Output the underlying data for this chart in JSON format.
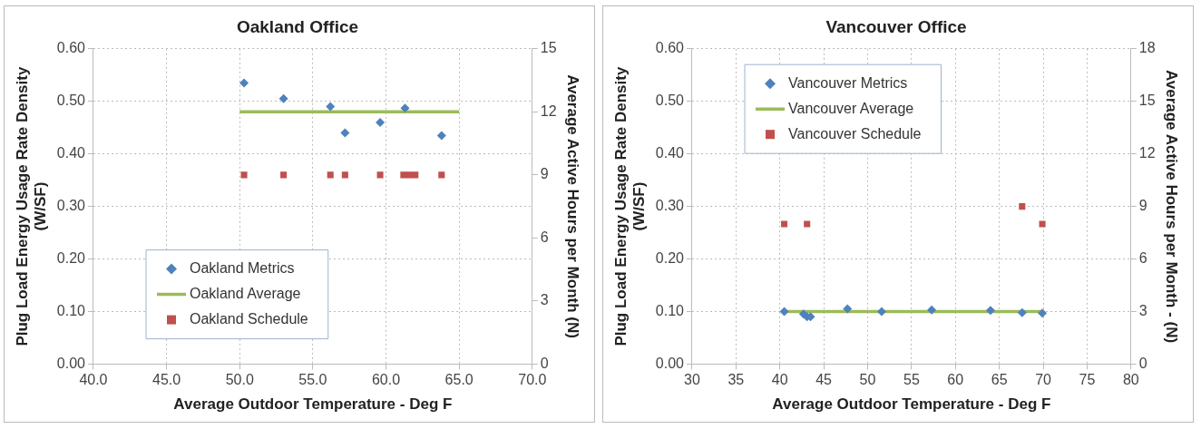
{
  "chart_data": [
    {
      "type": "scatter",
      "title": "Oakland Office",
      "xlabel": "Average Outdoor Temperature - Deg F",
      "ylabel": "Plug Load Energy Usage Rate Density\n(W/SF)",
      "y2label": "Average Active Hours per Month (N)",
      "xlim": [
        40,
        70
      ],
      "xticks": [
        {
          "value": 40,
          "label": "40.0"
        },
        {
          "value": 45,
          "label": "45.0"
        },
        {
          "value": 50,
          "label": "50.0"
        },
        {
          "value": 55,
          "label": "55.0"
        },
        {
          "value": 60,
          "label": "60.0"
        },
        {
          "value": 65,
          "label": "65.0"
        },
        {
          "value": 70,
          "label": "70.0"
        }
      ],
      "ylim": [
        0,
        0.6
      ],
      "yticks": [
        {
          "value": 0,
          "label": "0.00"
        },
        {
          "value": 0.1,
          "label": "0.10"
        },
        {
          "value": 0.2,
          "label": "0.20"
        },
        {
          "value": 0.3,
          "label": "0.30"
        },
        {
          "value": 0.4,
          "label": "0.40"
        },
        {
          "value": 0.5,
          "label": "0.50"
        },
        {
          "value": 0.6,
          "label": "0.60"
        }
      ],
      "y2lim": [
        0,
        15
      ],
      "y2ticks": [
        0,
        3,
        6,
        9,
        12,
        15
      ],
      "grid": true,
      "legend": "bottom left",
      "series": [
        {
          "name": "Oakland Metrics",
          "marker": "diamond",
          "color": "#4f81bd",
          "x": [
            50.3,
            53.0,
            56.2,
            57.2,
            59.6,
            61.3,
            63.8
          ],
          "values": [
            0.535,
            0.505,
            0.49,
            0.44,
            0.46,
            0.487,
            0.435
          ]
        },
        {
          "name": "Oakland Average",
          "type": "line",
          "marker": "none",
          "color": "#9bbb59",
          "x": [
            50.0,
            65.0
          ],
          "values": [
            0.48,
            0.48
          ]
        },
        {
          "name": "Oakland Schedule",
          "marker": "square",
          "axis": "y2",
          "color": "#c0504d",
          "x": [
            50.3,
            53.0,
            56.2,
            57.2,
            59.6,
            61.2,
            61.6,
            62.0,
            63.8
          ],
          "values": [
            9,
            9,
            9,
            9,
            9,
            9,
            9,
            9,
            9
          ]
        }
      ]
    },
    {
      "type": "scatter",
      "title": "Vancouver Office",
      "xlabel": "Average Outdoor Temperature - Deg F",
      "ylabel": "Plug Load Energy Usage Rate Density\n(W/SF)",
      "y2label": "Average Active Hours per Month - (N)",
      "xlim": [
        30,
        80
      ],
      "xticks": [
        30,
        35,
        40,
        45,
        50,
        55,
        60,
        65,
        70,
        75,
        80
      ],
      "ylim": [
        0,
        0.6
      ],
      "yticks": [
        {
          "value": 0,
          "label": "0.00"
        },
        {
          "value": 0.1,
          "label": "0.10"
        },
        {
          "value": 0.2,
          "label": "0.20"
        },
        {
          "value": 0.3,
          "label": "0.30"
        },
        {
          "value": 0.4,
          "label": "0.40"
        },
        {
          "value": 0.5,
          "label": "0.50"
        },
        {
          "value": 0.6,
          "label": "0.60"
        }
      ],
      "y2lim": [
        0,
        18
      ],
      "y2ticks": [
        0,
        3,
        6,
        9,
        12,
        15,
        18
      ],
      "grid": true,
      "legend": "top left",
      "series": [
        {
          "name": "Vancouver Metrics",
          "marker": "diamond",
          "color": "#4f81bd",
          "x": [
            40.5,
            42.7,
            43.1,
            43.5,
            47.7,
            51.6,
            57.3,
            64.0,
            67.6,
            69.9
          ],
          "values": [
            0.1,
            0.095,
            0.09,
            0.09,
            0.105,
            0.1,
            0.103,
            0.102,
            0.098,
            0.097
          ]
        },
        {
          "name": "Vancouver Average",
          "type": "line",
          "marker": "none",
          "color": "#9bbb59",
          "x": [
            40.5,
            69.9
          ],
          "values": [
            0.1,
            0.1
          ]
        },
        {
          "name": "Vancouver Schedule",
          "marker": "square",
          "axis": "y2",
          "color": "#c0504d",
          "x": [
            40.5,
            43.1,
            67.6,
            69.9
          ],
          "values": [
            8,
            8,
            9,
            8
          ]
        }
      ]
    }
  ]
}
